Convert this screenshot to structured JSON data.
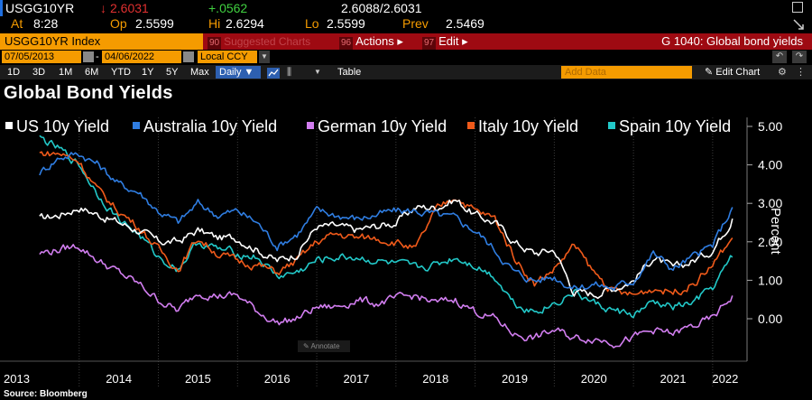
{
  "ticker": {
    "symbol": "USGG10YR",
    "last_arrow": "↓",
    "last": "2.6031",
    "change": "+.0562",
    "bid_ask": "2.6088/2.6031",
    "at_label": "At",
    "at_time": "8:28",
    "op_label": "Op",
    "op": "2.5599",
    "hi_label": "Hi",
    "hi": "2.6294",
    "lo_label": "Lo",
    "lo": "2.5599",
    "prev_label": "Prev",
    "prev": "2.5469"
  },
  "toolbar": {
    "index_label": "USGG10YR Index",
    "suggested_key": "90",
    "suggested_label": "Suggested Charts",
    "actions_key": "96",
    "actions_label": "Actions ▸",
    "edit_key": "97",
    "edit_label": "Edit ▸",
    "graph_title": "G 1040: Global bond yields"
  },
  "range": {
    "start": "07/05/2013",
    "end": "04/06/2022",
    "currency": "Local CCY",
    "dropdown_arrow": "▼"
  },
  "periods": {
    "items": [
      "1D",
      "3D",
      "1M",
      "6M",
      "YTD",
      "1Y",
      "5Y",
      "Max"
    ],
    "selected": "Daily ▼",
    "table": "Table",
    "add_data": "Add Data",
    "edit_chart": "Edit Chart"
  },
  "colors": {
    "us": "#ffffff",
    "australia": "#2f7de1",
    "german": "#d27ef0",
    "italy": "#f05a1a",
    "spain": "#22c8c8",
    "orange": "#f59b00",
    "red_bar": "#9e0a12"
  },
  "chart_data": {
    "type": "line",
    "title": "Global Bond Yields",
    "ylabel": "Percent",
    "ylim": [
      -0.6,
      5.0
    ],
    "x_tick_labels": [
      "2013",
      "2014",
      "2015",
      "2016",
      "2017",
      "2018",
      "2019",
      "2020",
      "2021",
      "2022"
    ],
    "y_tick_labels": [
      "5.00",
      "4.00",
      "3.00",
      "2.00",
      "1.00",
      "0.00"
    ],
    "x": [
      2013.5,
      2013.75,
      2014.0,
      2014.25,
      2014.5,
      2014.75,
      2015.0,
      2015.25,
      2015.5,
      2015.75,
      2016.0,
      2016.25,
      2016.5,
      2016.75,
      2017.0,
      2017.25,
      2017.5,
      2017.75,
      2018.0,
      2018.25,
      2018.5,
      2018.75,
      2019.0,
      2019.25,
      2019.5,
      2019.75,
      2020.0,
      2020.25,
      2020.5,
      2020.75,
      2021.0,
      2021.25,
      2021.5,
      2021.75,
      2022.0,
      2022.25
    ],
    "series": [
      {
        "name": "US 10y Yield",
        "values": [
          2.6,
          2.7,
          2.9,
          2.7,
          2.5,
          2.3,
          2.0,
          2.0,
          2.3,
          2.1,
          2.1,
          1.8,
          1.5,
          1.7,
          2.4,
          2.4,
          2.3,
          2.4,
          2.5,
          2.9,
          2.9,
          3.1,
          2.7,
          2.5,
          2.0,
          1.7,
          1.8,
          0.7,
          0.65,
          0.8,
          1.0,
          1.6,
          1.3,
          1.5,
          1.8,
          2.6
        ]
      },
      {
        "name": "Australia 10y Yield",
        "values": [
          3.8,
          4.2,
          4.3,
          4.0,
          3.5,
          3.3,
          2.8,
          2.5,
          3.0,
          2.7,
          2.8,
          2.5,
          1.9,
          2.2,
          2.8,
          2.7,
          2.6,
          2.7,
          2.8,
          2.8,
          2.7,
          2.6,
          2.3,
          1.8,
          1.2,
          1.0,
          1.1,
          0.8,
          0.9,
          0.8,
          1.0,
          1.7,
          1.3,
          1.6,
          1.9,
          2.9
        ]
      },
      {
        "name": "German 10y Yield",
        "values": [
          1.7,
          1.8,
          1.9,
          1.5,
          1.2,
          0.9,
          0.5,
          0.2,
          0.7,
          0.6,
          0.6,
          0.2,
          -0.1,
          0.0,
          0.3,
          0.3,
          0.5,
          0.4,
          0.5,
          0.6,
          0.4,
          0.5,
          0.2,
          0.0,
          -0.4,
          -0.5,
          -0.3,
          -0.5,
          -0.5,
          -0.6,
          -0.5,
          -0.3,
          -0.4,
          -0.2,
          0.0,
          0.6
        ]
      },
      {
        "name": "Italy 10y Yield",
        "values": [
          4.3,
          4.3,
          4.1,
          3.3,
          2.8,
          2.4,
          1.8,
          1.3,
          2.1,
          1.7,
          1.5,
          1.4,
          1.2,
          1.5,
          2.0,
          2.2,
          2.1,
          2.1,
          2.0,
          1.8,
          2.8,
          3.2,
          2.8,
          2.6,
          1.6,
          0.9,
          1.3,
          1.9,
          1.2,
          0.7,
          0.6,
          0.8,
          0.7,
          0.9,
          1.4,
          2.1
        ]
      },
      {
        "name": "Spain 10y Yield",
        "values": [
          4.7,
          4.4,
          4.0,
          3.2,
          2.6,
          2.2,
          1.6,
          1.3,
          2.0,
          1.8,
          1.7,
          1.6,
          1.1,
          1.2,
          1.5,
          1.6,
          1.6,
          1.5,
          1.4,
          1.3,
          1.4,
          1.6,
          1.4,
          1.1,
          0.4,
          0.2,
          0.4,
          0.7,
          0.4,
          0.2,
          0.1,
          0.4,
          0.3,
          0.4,
          0.8,
          1.6
        ]
      }
    ],
    "legend_position": "top"
  },
  "annotate_label": "Annotate",
  "source": "Source: Bloomberg"
}
